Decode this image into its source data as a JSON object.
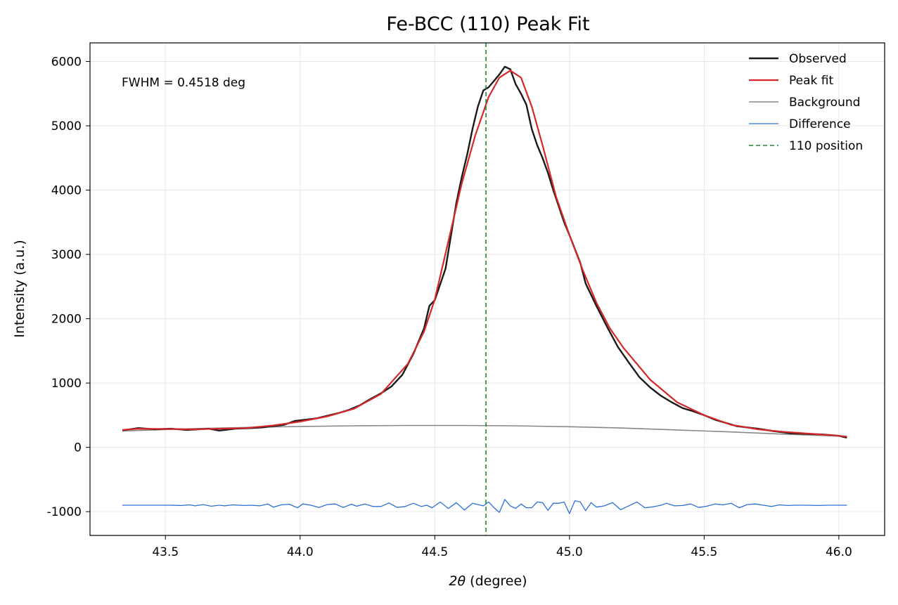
{
  "chart_data": {
    "type": "line",
    "title": "Fe-BCC (110) Peak Fit",
    "xlabel_var": "2θ",
    "xlabel_rest": " (degree)",
    "ylabel": "Intensity (a.u.)",
    "xlim": [
      43.22,
      46.17
    ],
    "ylim": [
      -1370,
      6290
    ],
    "xticks": [
      43.5,
      44.0,
      44.5,
      45.0,
      45.5,
      46.0
    ],
    "xtick_labels": [
      "43.5",
      "44.0",
      "44.5",
      "45.0",
      "45.5",
      "46.0"
    ],
    "yticks": [
      -1000,
      0,
      1000,
      2000,
      3000,
      4000,
      5000,
      6000
    ],
    "ytick_labels": [
      "-1000",
      "0",
      "1000",
      "2000",
      "3000",
      "4000",
      "5000",
      "6000"
    ],
    "grid": true,
    "legend_position": "top-right",
    "annotation": "FWHM = 0.4518 deg",
    "series": [
      {
        "name": "Observed",
        "color": "#1a1a1a",
        "x": [
          43.34,
          43.4,
          43.46,
          43.52,
          43.58,
          43.62,
          43.66,
          43.7,
          43.76,
          43.82,
          43.86,
          43.9,
          43.94,
          43.98,
          44.02,
          44.06,
          44.1,
          44.14,
          44.18,
          44.22,
          44.26,
          44.3,
          44.34,
          44.38,
          44.42,
          44.46,
          44.48,
          44.5,
          44.54,
          44.58,
          44.6,
          44.62,
          44.64,
          44.66,
          44.68,
          44.7,
          44.72,
          44.74,
          44.76,
          44.78,
          44.8,
          44.82,
          44.84,
          44.86,
          44.88,
          44.9,
          44.92,
          44.94,
          44.96,
          44.98,
          45.0,
          45.04,
          45.06,
          45.1,
          45.14,
          45.18,
          45.22,
          45.26,
          45.3,
          45.34,
          45.38,
          45.42,
          45.46,
          45.5,
          45.54,
          45.58,
          45.62,
          45.66,
          45.7,
          45.76,
          45.82,
          45.88,
          45.94,
          46.0,
          46.03
        ],
        "y": [
          265,
          300,
          280,
          290,
          270,
          280,
          290,
          260,
          290,
          300,
          310,
          330,
          350,
          410,
          430,
          450,
          490,
          530,
          580,
          650,
          750,
          840,
          950,
          1130,
          1450,
          1850,
          2200,
          2290,
          2780,
          3800,
          4200,
          4550,
          4950,
          5300,
          5550,
          5600,
          5700,
          5800,
          5920,
          5880,
          5650,
          5500,
          5330,
          4950,
          4700,
          4500,
          4270,
          4000,
          3750,
          3500,
          3300,
          2870,
          2550,
          2200,
          1870,
          1560,
          1320,
          1090,
          930,
          800,
          700,
          610,
          560,
          500,
          430,
          380,
          330,
          310,
          290,
          250,
          220,
          210,
          200,
          180,
          150
        ]
      },
      {
        "name": "Peak fit",
        "color": "#d62728",
        "x": [
          43.34,
          43.4,
          43.5,
          43.6,
          43.7,
          43.8,
          43.9,
          44.0,
          44.1,
          44.2,
          44.3,
          44.4,
          44.46,
          44.5,
          44.55,
          44.6,
          44.65,
          44.7,
          44.74,
          44.78,
          44.82,
          44.86,
          44.9,
          44.95,
          45.0,
          45.05,
          45.1,
          45.15,
          45.2,
          45.3,
          45.4,
          45.5,
          45.6,
          45.7,
          45.8,
          45.9,
          46.0,
          46.03
        ],
        "y": [
          270,
          290,
          285,
          280,
          290,
          300,
          340,
          400,
          480,
          600,
          830,
          1300,
          1800,
          2300,
          3200,
          4100,
          4850,
          5450,
          5750,
          5860,
          5750,
          5300,
          4700,
          3900,
          3300,
          2750,
          2250,
          1850,
          1550,
          1050,
          700,
          500,
          350,
          280,
          240,
          210,
          180,
          165
        ]
      },
      {
        "name": "Background",
        "color": "#888888",
        "x": [
          43.34,
          43.6,
          43.8,
          44.0,
          44.2,
          44.4,
          44.6,
          44.8,
          45.0,
          45.2,
          45.4,
          45.6,
          45.8,
          46.03
        ],
        "y": [
          255,
          290,
          310,
          325,
          335,
          340,
          340,
          335,
          320,
          300,
          270,
          240,
          205,
          170
        ]
      },
      {
        "name": "Difference",
        "color": "#2a6fd6",
        "x": [
          43.34,
          43.37,
          43.41,
          43.45,
          43.49,
          43.52,
          43.56,
          43.59,
          43.61,
          43.64,
          43.67,
          43.7,
          43.72,
          43.75,
          43.79,
          43.82,
          43.85,
          43.88,
          43.9,
          43.93,
          43.96,
          43.99,
          44.01,
          44.04,
          44.07,
          44.1,
          44.13,
          44.16,
          44.19,
          44.21,
          44.24,
          44.27,
          44.3,
          44.33,
          44.36,
          44.39,
          44.42,
          44.45,
          44.47,
          44.49,
          44.52,
          44.55,
          44.58,
          44.61,
          44.64,
          44.66,
          44.68,
          44.7,
          44.72,
          44.74,
          44.76,
          44.78,
          44.8,
          44.82,
          44.84,
          44.86,
          44.88,
          44.9,
          44.92,
          44.94,
          44.96,
          44.98,
          45.0,
          45.02,
          45.04,
          45.06,
          45.08,
          45.1,
          45.13,
          45.16,
          45.19,
          45.22,
          45.25,
          45.28,
          45.31,
          45.34,
          45.36,
          45.39,
          45.42,
          45.45,
          45.48,
          45.51,
          45.54,
          45.57,
          45.6,
          45.63,
          45.66,
          45.69,
          45.72,
          45.75,
          45.78,
          45.81,
          45.84,
          45.88,
          45.92,
          45.96,
          46.0,
          46.03
        ],
        "y": [
          -900,
          -900,
          -900,
          -900,
          -900,
          -900,
          -905,
          -895,
          -910,
          -890,
          -915,
          -900,
          -910,
          -895,
          -905,
          -900,
          -910,
          -880,
          -930,
          -895,
          -885,
          -940,
          -880,
          -900,
          -935,
          -890,
          -880,
          -935,
          -885,
          -915,
          -880,
          -920,
          -920,
          -865,
          -935,
          -920,
          -870,
          -920,
          -900,
          -940,
          -850,
          -950,
          -860,
          -975,
          -870,
          -890,
          -910,
          -850,
          -940,
          -1010,
          -810,
          -910,
          -950,
          -880,
          -940,
          -940,
          -850,
          -860,
          -980,
          -870,
          -870,
          -850,
          -1030,
          -830,
          -850,
          -985,
          -860,
          -930,
          -910,
          -860,
          -970,
          -910,
          -850,
          -940,
          -925,
          -900,
          -870,
          -910,
          -905,
          -880,
          -935,
          -915,
          -880,
          -895,
          -870,
          -940,
          -890,
          -880,
          -900,
          -920,
          -895,
          -905,
          -900,
          -900,
          -905,
          -900,
          -900,
          -900
        ]
      },
      {
        "name": "110 position",
        "color": "#1a8a2e",
        "vline_x": 44.69
      }
    ]
  }
}
